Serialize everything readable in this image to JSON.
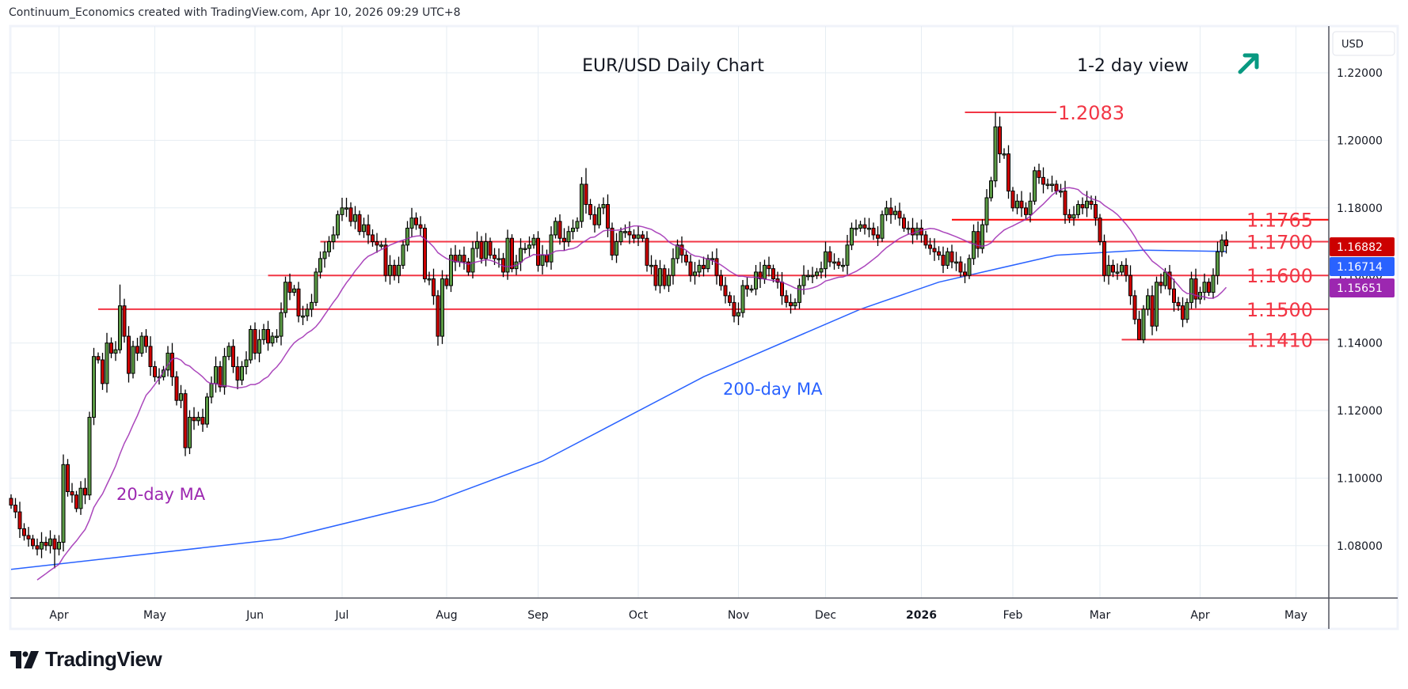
{
  "header": {
    "attribution": "Continuum_Economics created with TradingView.com, Apr 10, 2026 09:29 UTC+8"
  },
  "branding": {
    "logo_text": "TradingView"
  },
  "chart_data": {
    "type": "candlestick",
    "title": "EUR/USD Daily Chart",
    "view_label": "1-2 day view",
    "view_direction": "up",
    "currency": "USD",
    "ylim": [
      1.0655,
      1.2335
    ],
    "y_ticks": [
      "1.22000",
      "1.20000",
      "1.18000",
      "1.16000",
      "1.14000",
      "1.12000",
      "1.10000",
      "1.08000"
    ],
    "y_tick_values": [
      1.22,
      1.2,
      1.18,
      1.16,
      1.14,
      1.12,
      1.1,
      1.08
    ],
    "x_ticks": [
      {
        "label": "Apr",
        "index": 11
      },
      {
        "label": "May",
        "index": 33
      },
      {
        "label": "Jun",
        "index": 56
      },
      {
        "label": "Jul",
        "index": 76
      },
      {
        "label": "Aug",
        "index": 100
      },
      {
        "label": "Sep",
        "index": 121
      },
      {
        "label": "Oct",
        "index": 144
      },
      {
        "label": "Nov",
        "index": 167
      },
      {
        "label": "Dec",
        "index": 187
      },
      {
        "label": "2026",
        "index": 209,
        "bold": true
      },
      {
        "label": "Feb",
        "index": 230
      },
      {
        "label": "Mar",
        "index": 250
      },
      {
        "label": "Apr",
        "index": 273
      },
      {
        "label": "May",
        "index": 295
      }
    ],
    "first_open": 1.094,
    "closes": [
      1.092,
      1.09,
      1.085,
      1.083,
      1.082,
      1.08,
      1.079,
      1.081,
      1.08,
      1.082,
      1.079,
      1.081,
      1.104,
      1.096,
      1.095,
      1.091,
      1.097,
      1.095,
      1.118,
      1.136,
      1.135,
      1.128,
      1.14,
      1.137,
      1.138,
      1.151,
      1.142,
      1.131,
      1.139,
      1.137,
      1.142,
      1.139,
      1.133,
      1.13,
      1.13,
      1.132,
      1.137,
      1.13,
      1.123,
      1.125,
      1.109,
      1.118,
      1.117,
      1.118,
      1.116,
      1.124,
      1.128,
      1.133,
      1.127,
      1.136,
      1.139,
      1.133,
      1.129,
      1.133,
      1.135,
      1.144,
      1.137,
      1.141,
      1.144,
      1.14,
      1.142,
      1.142,
      1.149,
      1.158,
      1.155,
      1.156,
      1.148,
      1.148,
      1.15,
      1.152,
      1.161,
      1.165,
      1.167,
      1.17,
      1.172,
      1.178,
      1.18,
      1.18,
      1.176,
      1.178,
      1.173,
      1.175,
      1.172,
      1.17,
      1.169,
      1.169,
      1.16,
      1.163,
      1.16,
      1.163,
      1.169,
      1.174,
      1.177,
      1.175,
      1.174,
      1.159,
      1.159,
      1.154,
      1.142,
      1.159,
      1.157,
      1.166,
      1.164,
      1.166,
      1.164,
      1.161,
      1.168,
      1.17,
      1.165,
      1.17,
      1.166,
      1.165,
      1.165,
      1.161,
      1.171,
      1.162,
      1.164,
      1.168,
      1.168,
      1.169,
      1.171,
      1.163,
      1.166,
      1.164,
      1.172,
      1.176,
      1.171,
      1.17,
      1.173,
      1.174,
      1.176,
      1.187,
      1.181,
      1.178,
      1.175,
      1.18,
      1.181,
      1.174,
      1.166,
      1.17,
      1.173,
      1.173,
      1.172,
      1.171,
      1.172,
      1.171,
      1.163,
      1.163,
      1.157,
      1.162,
      1.157,
      1.16,
      1.165,
      1.169,
      1.166,
      1.164,
      1.16,
      1.161,
      1.163,
      1.162,
      1.165,
      1.165,
      1.16,
      1.157,
      1.154,
      1.152,
      1.148,
      1.149,
      1.157,
      1.156,
      1.156,
      1.161,
      1.159,
      1.163,
      1.162,
      1.159,
      1.158,
      1.154,
      1.152,
      1.151,
      1.152,
      1.157,
      1.16,
      1.16,
      1.16,
      1.161,
      1.162,
      1.167,
      1.164,
      1.164,
      1.163,
      1.163,
      1.169,
      1.174,
      1.174,
      1.175,
      1.174,
      1.174,
      1.172,
      1.171,
      1.178,
      1.18,
      1.178,
      1.179,
      1.177,
      1.174,
      1.174,
      1.172,
      1.174,
      1.172,
      1.169,
      1.168,
      1.167,
      1.166,
      1.163,
      1.167,
      1.164,
      1.164,
      1.161,
      1.16,
      1.165,
      1.173,
      1.168,
      1.175,
      1.183,
      1.188,
      1.204,
      1.196,
      1.196,
      1.185,
      1.18,
      1.182,
      1.18,
      1.178,
      1.182,
      1.191,
      1.189,
      1.187,
      1.187,
      1.187,
      1.185,
      1.185,
      1.178,
      1.177,
      1.178,
      1.181,
      1.18,
      1.182,
      1.181,
      1.177,
      1.17,
      1.16,
      1.163,
      1.161,
      1.161,
      1.163,
      1.16,
      1.154,
      1.147,
      1.141,
      1.15,
      1.154,
      1.145,
      1.158,
      1.157,
      1.161,
      1.156,
      1.152,
      1.151,
      1.147,
      1.152,
      1.159,
      1.153,
      1.155,
      1.158,
      1.155,
      1.16,
      1.167,
      1.1705,
      1.1688
    ],
    "extremes": [
      {
        "index": 10,
        "low": 1.0733
      },
      {
        "index": 25,
        "high": 1.1573
      },
      {
        "index": 40,
        "low": 1.1065
      },
      {
        "index": 76,
        "high": 1.183
      },
      {
        "index": 98,
        "low": 1.1392
      },
      {
        "index": 132,
        "high": 1.1918
      },
      {
        "index": 226,
        "high": 1.2083
      },
      {
        "index": 259,
        "low": 1.141
      }
    ],
    "ma200": [
      [
        0,
        1.073
      ],
      [
        62,
        1.082
      ],
      [
        97,
        1.093
      ],
      [
        122,
        1.105
      ],
      [
        159,
        1.13
      ],
      [
        195,
        1.15
      ],
      [
        213,
        1.158
      ],
      [
        240,
        1.166
      ],
      [
        260,
        1.1675
      ],
      [
        279,
        1.1671
      ]
    ],
    "ma20_label": "20-day MA",
    "ma200_label": "200-day MA",
    "levels": [
      {
        "label": "1.2083",
        "value": 1.2083,
        "from_index": 219,
        "to_index": 240,
        "label_pos": "near"
      },
      {
        "label": "1.1765",
        "value": 1.1765,
        "from_index": 216,
        "label_pos": "right"
      },
      {
        "label": "1.1700",
        "value": 1.17,
        "from_index": 71,
        "label_pos": "right"
      },
      {
        "label": "1.1600",
        "value": 1.16,
        "from_index": 59,
        "label_pos": "right"
      },
      {
        "label": "1.1500",
        "value": 1.15,
        "from_index": 20,
        "label_pos": "right"
      },
      {
        "label": "1.1410",
        "value": 1.141,
        "from_index": 255,
        "label_pos": "right"
      }
    ],
    "price_badges": [
      {
        "label": "1.16882",
        "series": "last price",
        "color": "#cc0000"
      },
      {
        "label": "1.16714",
        "series": "200-day MA",
        "color": "#2962ff"
      },
      {
        "label": "1.15651",
        "series": "20-day MA",
        "color": "#9c27b0"
      }
    ],
    "colors": {
      "up": "#5a9a44",
      "down": "#cc0000",
      "level": "#f23645",
      "ma20": "#9c27b0",
      "ma200": "#2962ff",
      "arrow": "#089981",
      "grid": "#e6edf3"
    }
  }
}
